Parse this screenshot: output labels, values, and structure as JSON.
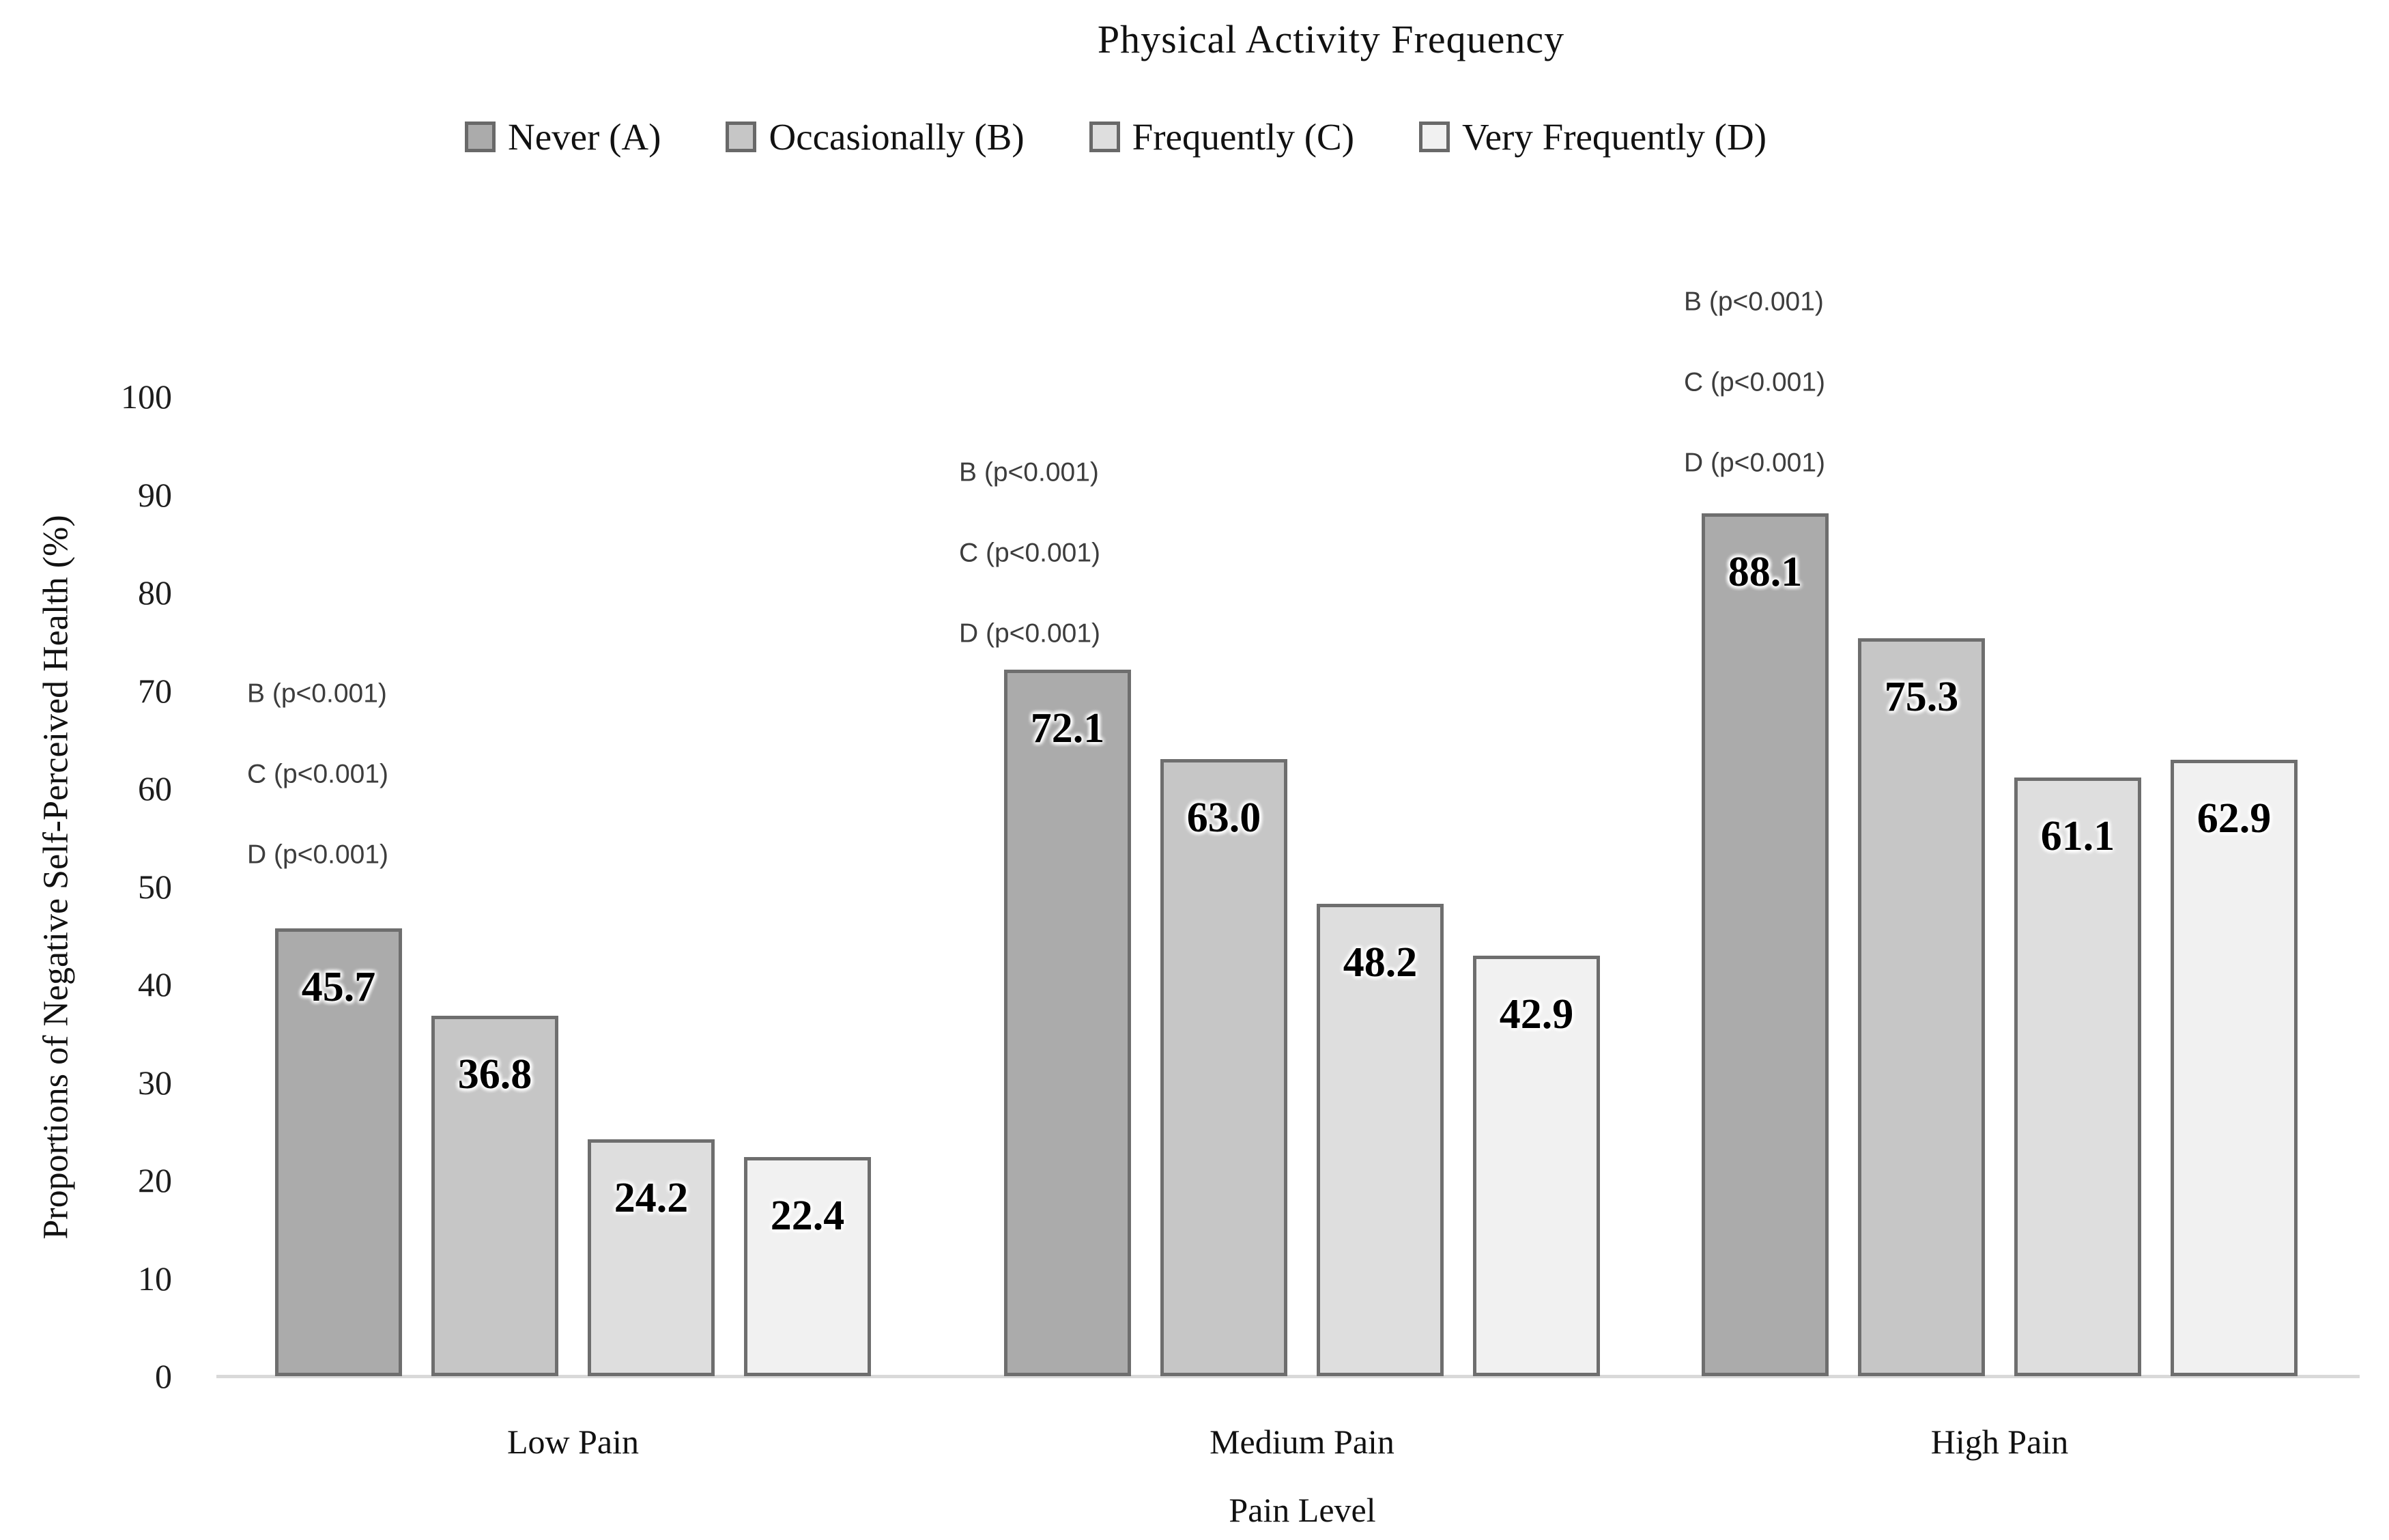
{
  "chart_data": {
    "type": "bar",
    "title": "Physical Activity Frequency",
    "xlabel": "Pain Level",
    "ylabel": "Proportions of Negative Self-Perceived Health (%)",
    "ylim": [
      0,
      100
    ],
    "yticks": [
      0,
      10,
      20,
      30,
      40,
      50,
      60,
      70,
      80,
      90,
      100
    ],
    "grid": false,
    "legend_position": "top",
    "categories": [
      "Low Pain",
      "Medium Pain",
      "High Pain"
    ],
    "series": [
      {
        "name": "Never (A)",
        "color": "#ababab",
        "values": [
          45.7,
          72.1,
          88.1
        ],
        "value_labels": [
          "45.7",
          "72.1",
          "88.1"
        ]
      },
      {
        "name": "Occasionally (B)",
        "color": "#c6c6c6",
        "values": [
          36.8,
          63.0,
          75.3
        ],
        "value_labels": [
          "36.8",
          "63.0",
          "75.3"
        ]
      },
      {
        "name": "Frequently (C)",
        "color": "#dedede",
        "values": [
          24.2,
          48.2,
          61.1
        ],
        "value_labels": [
          "24.2",
          "48.2",
          "61.1"
        ]
      },
      {
        "name": "Very Frequently (D)",
        "color": "#f1f1f1",
        "values": [
          22.4,
          42.9,
          62.9
        ],
        "value_labels": [
          "22.4",
          "42.9",
          "62.9"
        ]
      }
    ],
    "annotations": [
      {
        "category": "Low Pain",
        "lines": [
          "B (p<0.001)",
          "C (p<0.001)",
          "D (p<0.001)"
        ]
      },
      {
        "category": "Medium Pain",
        "lines": [
          "B (p<0.001)",
          "C (p<0.001)",
          "D (p<0.001)"
        ]
      },
      {
        "category": "High Pain",
        "lines": [
          "B (p<0.001)",
          "C (p<0.001)",
          "D (p<0.001)"
        ]
      }
    ],
    "styles": {
      "bar_border": "#6e6e6e",
      "axis_line": "#d9d9d9",
      "annotation_text": "#3d3d3d"
    }
  }
}
